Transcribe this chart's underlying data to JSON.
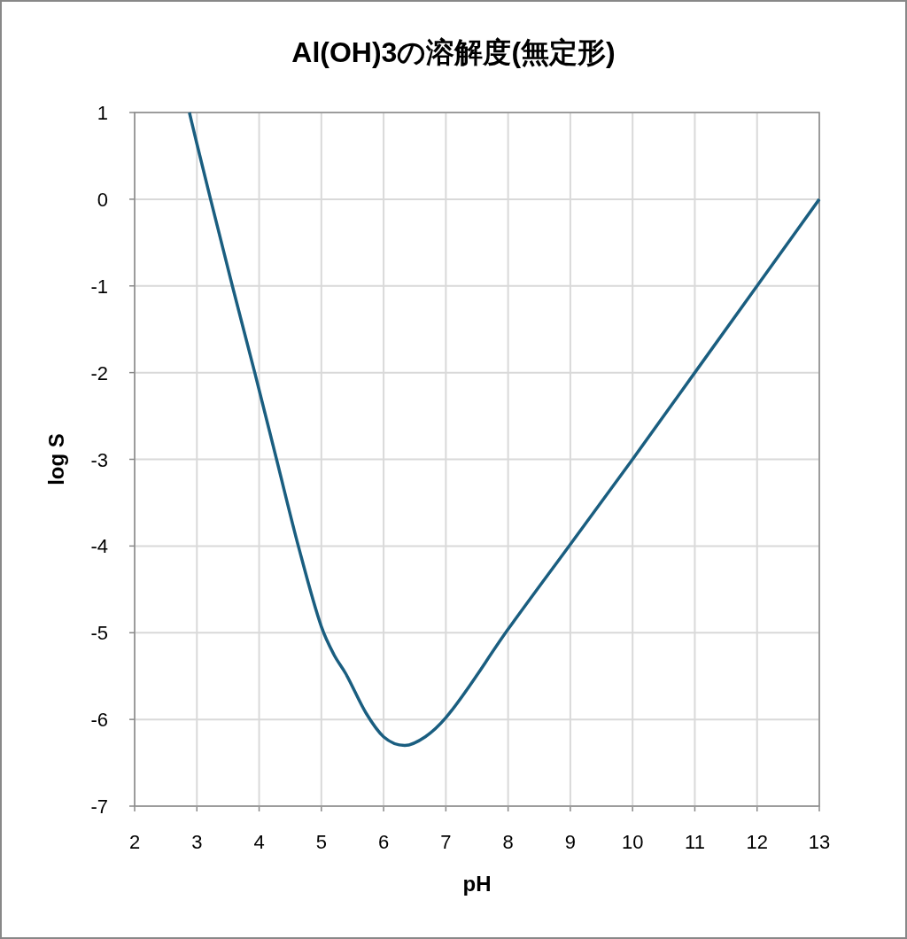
{
  "chart_data": {
    "type": "line",
    "title": "Al(OH)3の溶解度(無定形)",
    "xlabel": "pH",
    "ylabel": "log S",
    "xlim": [
      2,
      13
    ],
    "xticks": [
      2,
      3,
      4,
      5,
      6,
      7,
      8,
      9,
      10,
      11,
      12,
      13
    ],
    "ylim": [
      -7,
      1
    ],
    "yticks": [
      -7,
      -6,
      -5,
      -4,
      -3,
      -2,
      -1,
      0,
      1
    ],
    "grid": true,
    "marker": "none",
    "line_style": "solid",
    "series": [
      {
        "color": "#1a5e80",
        "x": [
          2.88,
          3,
          3.22,
          3.57,
          3.93,
          4.28,
          4.63,
          5,
          5.2,
          5.39,
          5.72,
          6,
          6.34,
          6.67,
          7,
          8,
          9,
          10,
          11,
          12,
          13
        ],
        "values": [
          1,
          0.64,
          0,
          -1,
          -2,
          -3,
          -4,
          -4.93,
          -5.25,
          -5.47,
          -5.93,
          -6.2,
          -6.3,
          -6.2,
          -5.98,
          -4.96,
          -3.98,
          -3,
          -2,
          -1,
          0
        ]
      }
    ]
  }
}
